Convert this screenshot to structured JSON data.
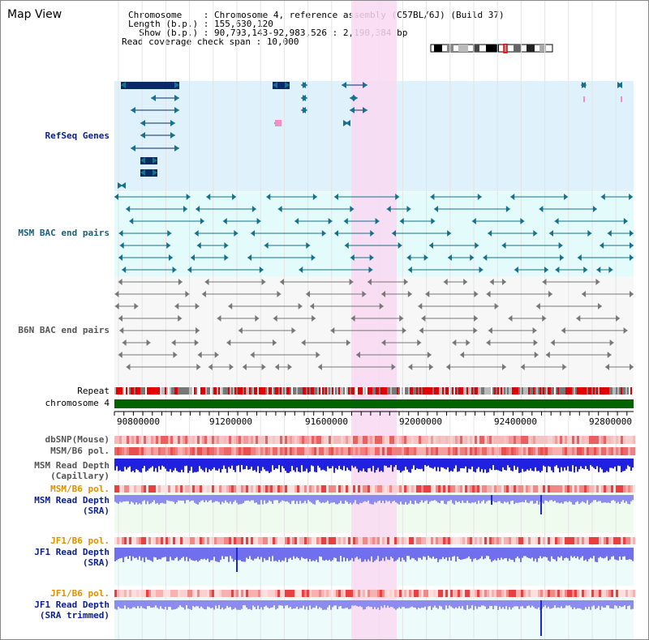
{
  "header": {
    "title": "Map View",
    "chromosome_label": "Chromosome    : ",
    "chromosome_value": "Chromosome 4, reference assembly (C57BL/6J) (Build 37)",
    "length_label": "Length (b.p.) : ",
    "length_value": "155,630,120",
    "show_label": "  Show (b.p.) : ",
    "show_value": "90,793,143-92,983,526 : 2,190,384 bp",
    "coverage_label": "Read coverage check span : ",
    "coverage_value": "10,000"
  },
  "tracks": {
    "refseq": "RefSeq Genes",
    "msm_bac": "MSM BAC end pairs",
    "b6n_bac": "B6N BAC end pairs",
    "repeat": "Repeat",
    "chromosome": "chromosome 4",
    "dbsnp": "dbSNP(Mouse)",
    "msm_b6_pol_1": "MSM/B6 pol.",
    "msm_read_depth_cap_1": "MSM Read Depth",
    "msm_read_depth_cap_2": "(Capillary)",
    "msm_b6_pol_2": "MSM/B6 pol.",
    "msm_read_depth_sra_1": "MSM Read Depth",
    "msm_read_depth_sra_2": "(SRA)",
    "jf1_b6_pol_1": "JF1/B6 pol.",
    "jf1_read_depth_sra_1": "JF1 Read Depth",
    "jf1_read_depth_sra_2": "(SRA)",
    "jf1_b6_pol_2": "JF1/B6 pol.",
    "jf1_read_depth_trim_1": "JF1 Read Depth",
    "jf1_read_depth_trim_2": "(SRA trimmed)"
  },
  "axis": {
    "ticks": [
      "90800000",
      "91200000",
      "91600000",
      "92000000",
      "92400000",
      "92800000"
    ]
  },
  "colors": {
    "refseq_bg": "#dff1fa",
    "msm_bg": "#e3fbfb",
    "highlight": "#f9d9f2",
    "gene": "#0a2a66",
    "msm_feature": "#16708a",
    "b6n_feature": "#777777",
    "chromosome_bar": "#006400"
  }
}
